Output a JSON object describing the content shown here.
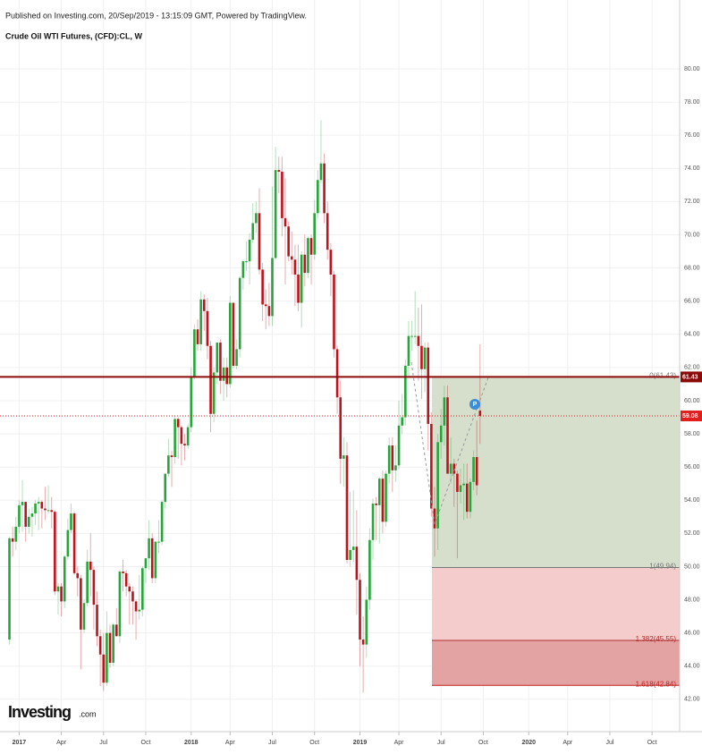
{
  "chart_data": {
    "type": "candlestick",
    "published": "Published on Investing.com, 20/Sep/2019 - 13:15:09 GMT, Powered by TradingView.",
    "title": "Crude Oil WTI Futures, (CFD):CL, W",
    "logo": "Investing",
    "logo_suffix": ".com",
    "marker_label": "P",
    "up_color": "#26a63a",
    "down_color": "#c0121b",
    "grid": true,
    "xlim": [
      -6.9,
      202.5
    ],
    "ylim": [
      40.05,
      84.15
    ],
    "yticks": [
      {
        "value": 42,
        "label": "42.00"
      },
      {
        "value": 44,
        "label": "44.00"
      },
      {
        "value": 46,
        "label": "46.00"
      },
      {
        "value": 48,
        "label": "48.00"
      },
      {
        "value": 50,
        "label": "50.00"
      },
      {
        "value": 52,
        "label": "52.00"
      },
      {
        "value": 54,
        "label": "54.00"
      },
      {
        "value": 56,
        "label": "56.00"
      },
      {
        "value": 58,
        "label": "58.00"
      },
      {
        "value": 60,
        "label": "60.00"
      },
      {
        "value": 62,
        "label": "62.00"
      },
      {
        "value": 64,
        "label": "64.00"
      },
      {
        "value": 66,
        "label": "66.00"
      },
      {
        "value": 68,
        "label": "68.00"
      },
      {
        "value": 70,
        "label": "70.00"
      },
      {
        "value": 72,
        "label": "72.00"
      },
      {
        "value": 74,
        "label": "74.00"
      },
      {
        "value": 76,
        "label": "76.00"
      },
      {
        "value": 78,
        "label": "78.00"
      },
      {
        "value": 80,
        "label": "80.00"
      }
    ],
    "xticks": [
      {
        "value": -1,
        "label": "2017"
      },
      {
        "value": 12,
        "label": "Apr"
      },
      {
        "value": 25,
        "label": "Jul"
      },
      {
        "value": 38,
        "label": "Oct"
      },
      {
        "value": 52,
        "label": "2018"
      },
      {
        "value": 64,
        "label": "Apr"
      },
      {
        "value": 77,
        "label": "Jul"
      },
      {
        "value": 90,
        "label": "Oct"
      },
      {
        "value": 104,
        "label": "2019"
      },
      {
        "value": 116,
        "label": "Apr"
      },
      {
        "value": 129,
        "label": "Jul"
      },
      {
        "value": 142,
        "label": "Oct"
      },
      {
        "value": 156,
        "label": "2020"
      },
      {
        "value": 168,
        "label": "Apr"
      },
      {
        "value": 181,
        "label": "Jul"
      },
      {
        "value": 194,
        "label": "Oct"
      }
    ],
    "x": [
      -4,
      -3,
      -2,
      -1,
      0,
      1,
      2,
      3,
      4,
      5,
      6,
      7,
      8,
      9,
      10,
      11,
      12,
      13,
      14,
      15,
      16,
      17,
      18,
      19,
      20,
      21,
      22,
      23,
      24,
      25,
      26,
      27,
      28,
      29,
      30,
      31,
      32,
      33,
      34,
      35,
      36,
      37,
      38,
      39,
      40,
      41,
      42,
      43,
      44,
      45,
      46,
      47,
      48,
      49,
      50,
      51,
      52,
      53,
      54,
      55,
      56,
      57,
      58,
      59,
      60,
      61,
      62,
      63,
      64,
      65,
      66,
      67,
      68,
      69,
      70,
      71,
      72,
      73,
      74,
      75,
      76,
      77,
      78,
      79,
      80,
      81,
      82,
      83,
      84,
      85,
      86,
      87,
      88,
      89,
      90,
      91,
      92,
      93,
      94,
      95,
      96,
      97,
      98,
      99,
      100,
      101,
      102,
      103,
      104,
      105,
      106,
      107,
      108,
      109,
      110,
      111,
      112,
      113,
      114,
      115,
      116,
      117,
      118,
      119,
      120,
      121,
      122,
      123,
      124,
      125,
      126,
      127,
      128,
      129,
      130,
      131,
      132,
      133,
      134,
      135,
      136,
      137,
      138,
      139,
      140,
      141
    ],
    "open": [
      45.6,
      51.7,
      51.5,
      52.4,
      53.7,
      53.9,
      52.4,
      53.0,
      53.2,
      53.8,
      53.9,
      53.5,
      53.4,
      53.4,
      53.3,
      48.5,
      48.8,
      47.9,
      50.6,
      52.2,
      53.2,
      49.6,
      49.3,
      46.2,
      47.8,
      50.3,
      49.8,
      47.7,
      45.8,
      44.7,
      43.0,
      46.0,
      44.2,
      46.5,
      45.8,
      49.7,
      49.6,
      48.8,
      48.5,
      47.9,
      47.3,
      47.4,
      49.9,
      50.5,
      51.7,
      49.3,
      51.5,
      51.5,
      53.9,
      55.6,
      56.7,
      56.6,
      58.9,
      58.4,
      57.4,
      57.3,
      58.4,
      61.4,
      64.3,
      63.4,
      66.1,
      65.4,
      63.3,
      59.2,
      61.7,
      63.5,
      61.2,
      62.0,
      61.0,
      65.9,
      62.1,
      63.1,
      67.4,
      68.4,
      68.4,
      69.7,
      70.7,
      71.3,
      67.9,
      65.8,
      65.7,
      65.1,
      68.6,
      73.9,
      73.8,
      71.0,
      70.5,
      68.7,
      68.5,
      67.6,
      65.9,
      68.8,
      67.7,
      69.8,
      68.8,
      71.3,
      73.3,
      74.3,
      71.3,
      69.1,
      67.6,
      63.1,
      60.2,
      56.5,
      56.7,
      50.4,
      51.0,
      51.2,
      49.2,
      45.6,
      45.3,
      48.0,
      51.6,
      53.8,
      53.7,
      55.3,
      52.7,
      55.6,
      57.3,
      55.8,
      56.1,
      58.5,
      59.0,
      62.1,
      63.9,
      63.9,
      63.9,
      63.3,
      61.9,
      63.2,
      58.6,
      53.5,
      52.3,
      57.5,
      58.5,
      60.2,
      55.6,
      56.2,
      55.6,
      54.5,
      54.9,
      55.0,
      53.3,
      55.1,
      56.6,
      59.4
    ],
    "high": [
      51.8,
      52.4,
      53.0,
      54.0,
      55.2,
      53.9,
      53.5,
      53.6,
      54.0,
      54.2,
      54.0,
      54.8,
      54.9,
      54.2,
      53.4,
      49.0,
      49.0,
      50.7,
      52.9,
      53.8,
      53.3,
      50.0,
      49.5,
      48.0,
      51.0,
      52.0,
      50.0,
      48.5,
      46.2,
      46.0,
      47.3,
      46.5,
      46.6,
      47.5,
      49.8,
      50.4,
      49.8,
      49.0,
      48.8,
      48.0,
      49.5,
      50.0,
      50.5,
      52.8,
      52.0,
      51.5,
      52.8,
      54.0,
      55.6,
      57.7,
      57.0,
      59.1,
      59.0,
      58.5,
      58.0,
      58.6,
      62.0,
      64.6,
      64.9,
      66.6,
      66.4,
      66.2,
      63.6,
      62.0,
      63.5,
      63.7,
      62.6,
      62.6,
      66.3,
      65.9,
      63.7,
      67.5,
      68.5,
      69.6,
      70.1,
      71.9,
      72.0,
      72.8,
      68.3,
      66.7,
      67.1,
      72.9,
      75.3,
      74.7,
      74.7,
      73.4,
      70.8,
      70.2,
      69.4,
      69.4,
      69.0,
      70.0,
      69.9,
      70.0,
      72.1,
      73.9,
      76.9,
      74.9,
      72.0,
      69.5,
      67.8,
      63.3,
      61.2,
      57.8,
      57.5,
      54.5,
      54.6,
      53.4,
      49.6,
      47.0,
      48.8,
      52.3,
      54.1,
      54.2,
      55.4,
      55.8,
      55.8,
      57.8,
      57.8,
      57.3,
      60.0,
      60.4,
      62.5,
      64.8,
      64.8,
      66.6,
      65.6,
      65.8,
      63.5,
      63.5,
      59.3,
      54.8,
      58.0,
      59.5,
      60.9,
      60.9,
      57.8,
      56.5,
      55.8,
      55.9,
      56.2,
      56.2,
      55.3,
      57.0,
      58.8,
      63.4
    ],
    "low": [
      45.3,
      50.6,
      51.0,
      52.0,
      52.1,
      51.5,
      52.0,
      51.8,
      52.5,
      52.2,
      52.3,
      52.8,
      53.2,
      52.3,
      48.3,
      47.1,
      47.0,
      47.5,
      50.4,
      52.0,
      49.5,
      48.2,
      43.8,
      46.0,
      47.6,
      48.2,
      46.2,
      45.2,
      42.8,
      42.5,
      42.8,
      43.9,
      44.0,
      45.8,
      45.4,
      48.5,
      48.2,
      46.5,
      46.5,
      45.6,
      46.8,
      47.0,
      49.0,
      49.8,
      49.0,
      49.0,
      50.8,
      51.3,
      53.5,
      55.4,
      54.8,
      56.2,
      56.5,
      56.1,
      56.4,
      57.1,
      58.1,
      61.3,
      63.0,
      63.0,
      64.2,
      62.5,
      58.1,
      58.7,
      61.0,
      60.4,
      60.0,
      60.2,
      60.8,
      62.0,
      61.9,
      62.6,
      66.7,
      67.8,
      67.0,
      69.5,
      70.1,
      67.6,
      64.8,
      64.3,
      64.5,
      64.5,
      68.5,
      72.5,
      69.9,
      67.0,
      68.4,
      67.6,
      65.7,
      65.4,
      64.4,
      66.9,
      67.4,
      67.0,
      68.5,
      71.0,
      73.1,
      70.7,
      68.5,
      66.3,
      62.6,
      59.2,
      55.0,
      54.8,
      50.2,
      50.0,
      50.3,
      47.1,
      44.0,
      42.4,
      44.5,
      47.4,
      50.4,
      51.6,
      51.4,
      52.0,
      52.4,
      55.0,
      54.5,
      55.1,
      55.9,
      58.0,
      58.5,
      61.5,
      63.0,
      63.4,
      61.2,
      60.1,
      60.5,
      57.0,
      53.0,
      50.6,
      51.0,
      56.5,
      57.3,
      55.6,
      55.0,
      53.6,
      50.5,
      53.8,
      52.8,
      52.9,
      52.9,
      54.6,
      54.3,
      57.4
    ],
    "close": [
      51.7,
      51.5,
      52.4,
      53.7,
      53.9,
      52.4,
      53.0,
      53.2,
      53.8,
      53.9,
      53.5,
      53.4,
      53.4,
      53.3,
      48.5,
      48.8,
      47.9,
      50.6,
      52.2,
      53.2,
      49.6,
      49.3,
      46.2,
      47.8,
      50.3,
      49.8,
      47.7,
      45.8,
      44.7,
      43.0,
      46.0,
      44.2,
      46.5,
      45.8,
      49.7,
      49.6,
      48.8,
      48.5,
      47.9,
      47.3,
      47.4,
      49.9,
      50.5,
      51.7,
      49.3,
      51.5,
      51.5,
      53.9,
      55.6,
      56.7,
      56.6,
      58.9,
      58.4,
      57.4,
      57.3,
      58.4,
      61.4,
      64.3,
      63.4,
      66.1,
      65.4,
      63.3,
      59.2,
      61.7,
      63.5,
      61.2,
      62.0,
      61.0,
      65.9,
      62.1,
      63.1,
      67.4,
      68.4,
      68.4,
      69.7,
      70.7,
      71.3,
      67.9,
      65.8,
      65.7,
      65.1,
      68.6,
      73.9,
      73.8,
      71.0,
      70.5,
      68.7,
      68.5,
      67.6,
      65.9,
      68.8,
      67.7,
      69.8,
      68.8,
      71.3,
      73.3,
      74.3,
      71.3,
      69.1,
      67.6,
      63.1,
      60.2,
      56.5,
      56.7,
      50.4,
      51.0,
      51.2,
      49.2,
      45.6,
      45.3,
      48.0,
      51.6,
      53.8,
      53.7,
      55.3,
      52.7,
      55.6,
      57.3,
      55.8,
      56.1,
      58.5,
      59.0,
      62.1,
      63.9,
      63.9,
      63.9,
      63.3,
      61.9,
      63.2,
      58.6,
      53.5,
      52.3,
      57.5,
      58.5,
      60.2,
      55.6,
      56.2,
      55.6,
      54.5,
      54.9,
      55.0,
      53.3,
      55.1,
      56.6,
      54.9,
      59.08
    ],
    "fib_levels": [
      {
        "label": "0(61.43)",
        "value": 61.43,
        "color": "#777777"
      },
      {
        "label": "1(49.94)",
        "value": 49.94,
        "color": "#777777"
      },
      {
        "label": "1.382(45.55)",
        "value": 45.55,
        "color": "#b03030"
      },
      {
        "label": "1.618(42.84)",
        "value": 42.84,
        "color": "#c02020"
      }
    ],
    "price_lines": [
      {
        "value": 61.43,
        "color": "#8b0a0a",
        "style": "solid"
      },
      {
        "value": 59.08,
        "color": "#e01e1e",
        "style": "dotted"
      }
    ]
  }
}
